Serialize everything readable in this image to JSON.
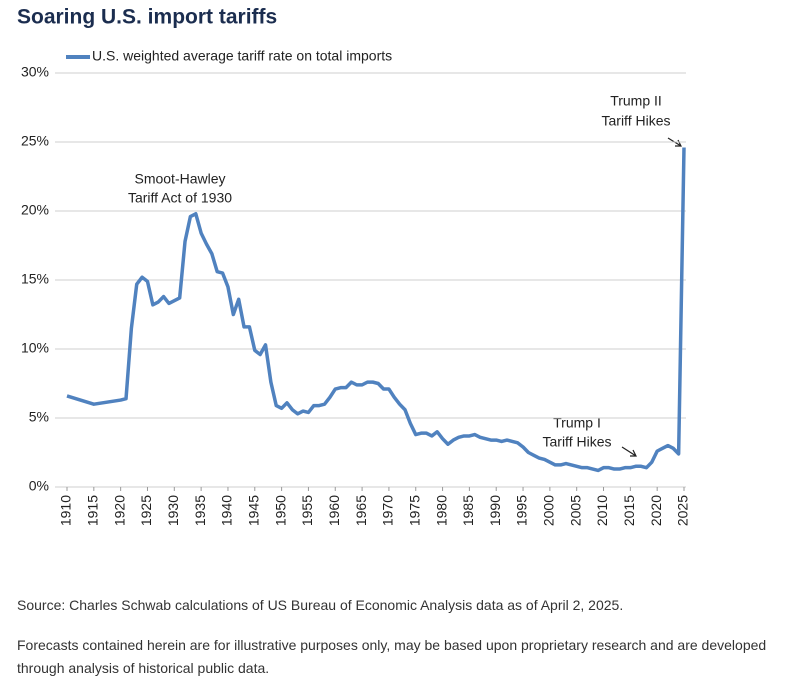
{
  "chart_data": {
    "type": "line",
    "title": "Soaring U.S. import tariffs",
    "x": [
      1910,
      1915,
      1920,
      1921,
      1922,
      1923,
      1924,
      1925,
      1926,
      1927,
      1928,
      1929,
      1930,
      1931,
      1932,
      1933,
      1934,
      1935,
      1936,
      1937,
      1938,
      1939,
      1940,
      1941,
      1942,
      1943,
      1944,
      1945,
      1946,
      1947,
      1948,
      1949,
      1950,
      1951,
      1952,
      1953,
      1954,
      1955,
      1956,
      1957,
      1958,
      1959,
      1960,
      1961,
      1962,
      1963,
      1964,
      1965,
      1966,
      1967,
      1968,
      1969,
      1970,
      1971,
      1972,
      1973,
      1974,
      1975,
      1976,
      1977,
      1978,
      1979,
      1980,
      1981,
      1982,
      1983,
      1984,
      1985,
      1986,
      1987,
      1988,
      1989,
      1990,
      1991,
      1992,
      1993,
      1994,
      1995,
      1996,
      1997,
      1998,
      1999,
      2000,
      2001,
      2002,
      2003,
      2004,
      2005,
      2006,
      2007,
      2008,
      2009,
      2010,
      2011,
      2012,
      2013,
      2014,
      2015,
      2016,
      2017,
      2018,
      2019,
      2020,
      2021,
      2022,
      2023,
      2024,
      2025
    ],
    "series": [
      {
        "name": "U.S. weighted average tariff rate on total imports",
        "color": "#5082bf",
        "values": [
          6.6,
          6.0,
          6.3,
          6.4,
          11.5,
          14.7,
          15.2,
          14.9,
          13.2,
          13.4,
          13.8,
          13.3,
          13.5,
          13.7,
          17.8,
          19.6,
          19.8,
          18.4,
          17.6,
          16.9,
          15.6,
          15.5,
          14.5,
          12.5,
          13.6,
          11.6,
          11.6,
          9.9,
          9.6,
          10.3,
          7.6,
          5.9,
          5.7,
          6.1,
          5.6,
          5.3,
          5.5,
          5.4,
          5.9,
          5.9,
          6.0,
          6.5,
          7.1,
          7.2,
          7.2,
          7.6,
          7.4,
          7.4,
          7.6,
          7.6,
          7.5,
          7.1,
          7.1,
          6.5,
          6.0,
          5.6,
          4.6,
          3.8,
          3.9,
          3.9,
          3.7,
          4.0,
          3.5,
          3.1,
          3.4,
          3.6,
          3.7,
          3.7,
          3.8,
          3.6,
          3.5,
          3.4,
          3.4,
          3.3,
          3.4,
          3.3,
          3.2,
          2.9,
          2.5,
          2.3,
          2.1,
          2.0,
          1.8,
          1.6,
          1.6,
          1.7,
          1.6,
          1.5,
          1.4,
          1.4,
          1.3,
          1.2,
          1.4,
          1.4,
          1.3,
          1.3,
          1.4,
          1.4,
          1.5,
          1.5,
          1.4,
          1.8,
          2.6,
          2.8,
          3.0,
          2.8,
          2.4,
          24.6
        ]
      }
    ],
    "xlim": [
      1910,
      2025
    ],
    "ylim": [
      0,
      30
    ],
    "xticks": [
      1910,
      1915,
      1920,
      1925,
      1930,
      1935,
      1940,
      1945,
      1950,
      1955,
      1960,
      1965,
      1970,
      1975,
      1980,
      1985,
      1990,
      1995,
      2000,
      2005,
      2010,
      2015,
      2020,
      2025
    ],
    "yticks": [
      {
        "value": 0,
        "label": "0%"
      },
      {
        "value": 5,
        "label": "5%"
      },
      {
        "value": 10,
        "label": "10%"
      },
      {
        "value": 15,
        "label": "15%"
      },
      {
        "value": 20,
        "label": "20%"
      },
      {
        "value": 25,
        "label": "25%"
      },
      {
        "value": 30,
        "label": "30%"
      }
    ],
    "grid": true,
    "annotations": [
      "Smoot-Hawley",
      "Tariff Act of 1930",
      "Trump II",
      "Tariff Hikes",
      "Trump I",
      "Tariff Hikes"
    ],
    "source": "Source: Charles Schwab calculations of US Bureau of Economic Analysis data as of April 2, 2025.",
    "note": "Forecasts contained herein are for illustrative purposes only, may be based upon proprietary research and are developed through analysis of historical public data."
  }
}
